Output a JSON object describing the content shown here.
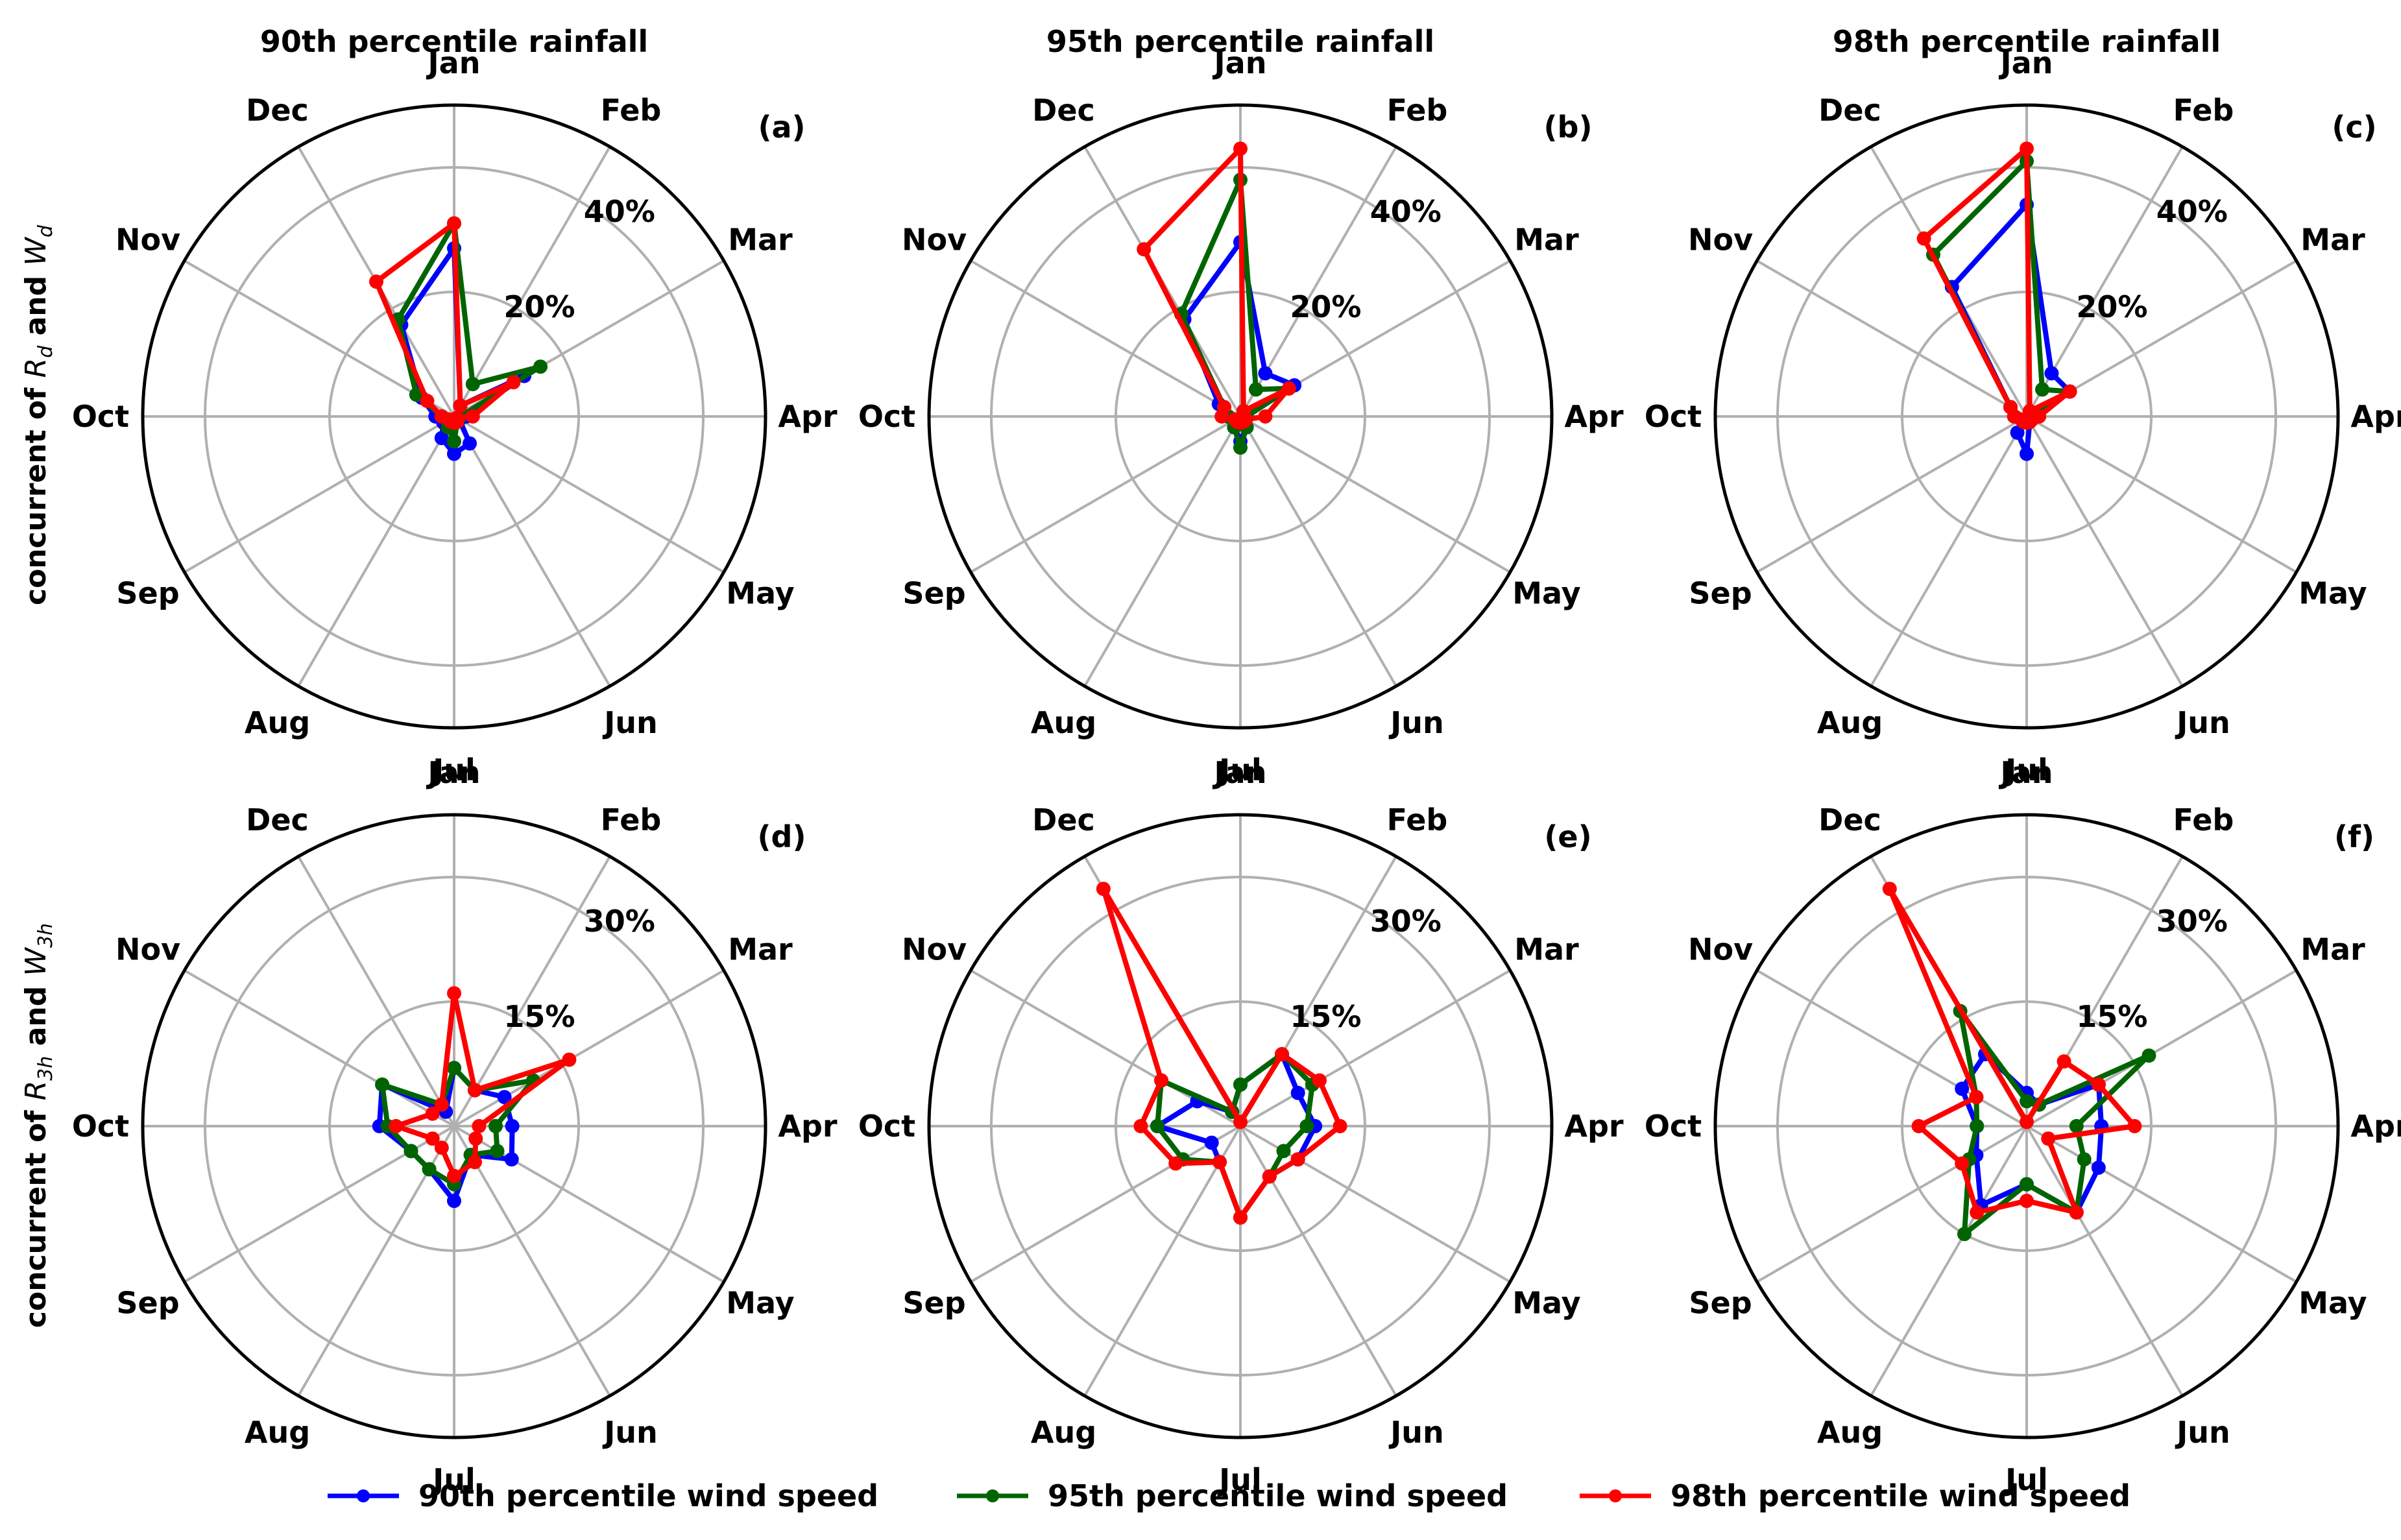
{
  "figure": {
    "row_labels": [
      "concurrent of R_d and W_d",
      "concurrent of R_3h and W_3h"
    ],
    "row_label_parts": [
      {
        "pre": "concurrent of ",
        "var1": "R",
        "sub1": "d",
        "mid": " and ",
        "var2": "W",
        "sub2": "d"
      },
      {
        "pre": "concurrent of ",
        "var1": "R",
        "sub1": "3h",
        "mid": " and ",
        "var2": "W",
        "sub2": "3h"
      }
    ],
    "column_titles": [
      "90th percentile rainfall",
      "95th percentile rainfall",
      "98th percentile rainfall"
    ],
    "months": [
      "Jan",
      "Feb",
      "Mar",
      "Apr",
      "May",
      "Jun",
      "Jul",
      "Aug",
      "Sep",
      "Oct",
      "Nov",
      "Dec"
    ]
  },
  "legend": {
    "placement": "bottom-center",
    "entries": [
      {
        "label": "90th percentile wind speed",
        "color": "#0000ff"
      },
      {
        "label": "95th percentile wind speed",
        "color": "#006400"
      },
      {
        "label": "98th percentile wind speed",
        "color": "#ff0000"
      }
    ]
  },
  "chart_data": [
    {
      "type": "radar",
      "panel": "(a)",
      "title": "90th percentile rainfall",
      "rmax": 50,
      "radial_ticks": [
        20,
        40
      ],
      "radial_tick_labels": [
        "20%",
        "40%"
      ],
      "series": [
        {
          "name": "90th percentile wind speed",
          "color": "#0000ff",
          "values": [
            27,
            2,
            13,
            2,
            1,
            5,
            6,
            4,
            2,
            3,
            6,
            17
          ]
        },
        {
          "name": "95th percentile wind speed",
          "color": "#006400",
          "values": [
            31,
            6,
            16,
            1,
            0.5,
            1,
            4,
            2,
            1,
            2,
            7,
            18
          ]
        },
        {
          "name": "98th percentile wind speed",
          "color": "#ff0000",
          "values": [
            31,
            2,
            11,
            3,
            0.5,
            1,
            1,
            1,
            1,
            2,
            5,
            25
          ]
        }
      ]
    },
    {
      "type": "radar",
      "panel": "(b)",
      "title": "95th percentile rainfall",
      "rmax": 50,
      "radial_ticks": [
        20,
        40
      ],
      "radial_tick_labels": [
        "20%",
        "40%"
      ],
      "series": [
        {
          "name": "90th percentile wind speed",
          "color": "#0000ff",
          "values": [
            28,
            8,
            10,
            1,
            1,
            2,
            4,
            2,
            1,
            2,
            4,
            18
          ]
        },
        {
          "name": "95th percentile wind speed",
          "color": "#006400",
          "values": [
            38,
            5,
            9,
            1,
            1,
            2,
            5,
            2,
            1,
            2,
            3,
            19
          ]
        },
        {
          "name": "98th percentile wind speed",
          "color": "#ff0000",
          "values": [
            43,
            1,
            9,
            4,
            1,
            1,
            1,
            1,
            1,
            3,
            3,
            31
          ]
        }
      ]
    },
    {
      "type": "radar",
      "panel": "(c)",
      "title": "98th percentile rainfall",
      "rmax": 50,
      "radial_ticks": [
        20,
        40
      ],
      "radial_tick_labels": [
        "20%",
        "40%"
      ],
      "series": [
        {
          "name": "90th percentile wind speed",
          "color": "#0000ff",
          "values": [
            34,
            8,
            8,
            1,
            1,
            1,
            6,
            3,
            1,
            2,
            3,
            24
          ]
        },
        {
          "name": "95th percentile wind speed",
          "color": "#006400",
          "values": [
            41,
            5,
            8,
            1,
            1,
            1,
            1,
            1,
            1,
            2,
            3,
            30
          ]
        },
        {
          "name": "98th percentile wind speed",
          "color": "#ff0000",
          "values": [
            43,
            1,
            8,
            2,
            1,
            1,
            1,
            1,
            1,
            2,
            3,
            33
          ]
        }
      ]
    },
    {
      "type": "radar",
      "panel": "(d)",
      "title": "",
      "rmax": 37.5,
      "radial_ticks": [
        15,
        30
      ],
      "radial_tick_labels": [
        "15%",
        "30%"
      ],
      "series": [
        {
          "name": "90th percentile wind speed",
          "color": "#0000ff",
          "values": [
            7,
            5,
            7,
            7,
            8,
            4,
            9,
            6,
            6,
            9,
            10,
            2
          ]
        },
        {
          "name": "95th percentile wind speed",
          "color": "#006400",
          "values": [
            7,
            5,
            11,
            5,
            6,
            4,
            7,
            6,
            6,
            8,
            10,
            3
          ]
        },
        {
          "name": "98th percentile wind speed",
          "color": "#ff0000",
          "values": [
            16,
            5,
            16,
            3,
            3,
            5,
            6,
            3,
            3,
            7,
            3,
            3
          ]
        }
      ]
    },
    {
      "type": "radar",
      "panel": "(e)",
      "title": "",
      "rmax": 37.5,
      "radial_ticks": [
        15,
        30
      ],
      "radial_tick_labels": [
        "15%",
        "30%"
      ],
      "series": [
        {
          "name": "90th percentile wind speed",
          "color": "#0000ff",
          "values": [
            5,
            10,
            8,
            9,
            8,
            7,
            11,
            5,
            4,
            10,
            6,
            2
          ]
        },
        {
          "name": "95th percentile wind speed",
          "color": "#006400",
          "values": [
            5,
            10,
            10,
            8,
            6,
            7,
            11,
            5,
            8,
            10,
            11,
            2
          ]
        },
        {
          "name": "98th percentile wind speed",
          "color": "#ff0000",
          "values": [
            0.5,
            10,
            11,
            12,
            8,
            7,
            11,
            5,
            9,
            12,
            11,
            33
          ]
        }
      ]
    },
    {
      "type": "radar",
      "panel": "(f)",
      "title": "",
      "rmax": 37.5,
      "radial_ticks": [
        15,
        30
      ],
      "radial_tick_labels": [
        "15%",
        "30%"
      ],
      "series": [
        {
          "name": "90th percentile wind speed",
          "color": "#0000ff",
          "values": [
            4,
            3,
            10,
            9,
            10,
            12,
            7,
            11,
            7,
            6,
            9,
            10
          ]
        },
        {
          "name": "95th percentile wind speed",
          "color": "#006400",
          "values": [
            3,
            3,
            17,
            6,
            8,
            12,
            7,
            15,
            8,
            6,
            7,
            16
          ]
        },
        {
          "name": "98th percentile wind speed",
          "color": "#ff0000",
          "values": [
            0.5,
            9,
            10,
            13,
            3,
            12,
            9,
            12,
            9,
            13,
            7,
            33
          ]
        }
      ]
    }
  ]
}
